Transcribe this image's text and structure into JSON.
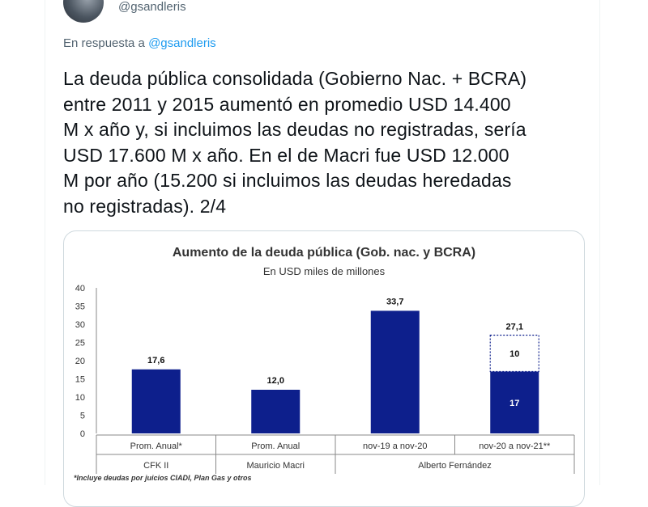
{
  "author": {
    "handle": "@gsandleris"
  },
  "reply": {
    "prefix": "En respuesta a",
    "to": "@gsandleris"
  },
  "tweet": {
    "text": "La deuda pública consolidada (Gobierno Nac. + BCRA)\nentre 2011 y 2015 aumentó en promedio USD 14.400\nM x año y, si incluimos las deudas no registradas, sería\nUSD 17.600 M x año. En el de Macri fue USD 12.000\nM por año (15.200 si incluimos las deudas heredadas\nno registradas). 2/4"
  },
  "chart_data": {
    "type": "bar",
    "title": "Aumento de la deuda pública (Gob. nac. y BCRA)",
    "subtitle": "En USD miles de millones",
    "ylim": [
      0,
      40
    ],
    "yticks": [
      0,
      5,
      10,
      15,
      20,
      25,
      30,
      35,
      40
    ],
    "categories": [
      "Prom. Anual*",
      "Prom. Anual",
      "nov-19 a nov-20",
      "nov-20 a nov-21**"
    ],
    "groups": [
      "CFK II",
      "Mauricio Macri",
      "Alberto Fernández"
    ],
    "group_of_category": [
      0,
      1,
      2,
      2
    ],
    "series": [
      {
        "values": [
          17.6,
          12.0,
          33.7,
          17
        ],
        "labels": [
          "17,6",
          "12,0",
          "33,7",
          "17"
        ]
      },
      {
        "values": [
          0,
          0,
          0,
          10
        ],
        "labels": [
          "",
          "",
          "",
          "10"
        ],
        "style": "dashed-outline"
      }
    ],
    "totals": [
      "",
      "",
      "",
      "27,1"
    ],
    "bar_color": "#0d1f8c",
    "footnote": "*Incluye deudas por juicios CIADI, Plan Gas y otros"
  }
}
